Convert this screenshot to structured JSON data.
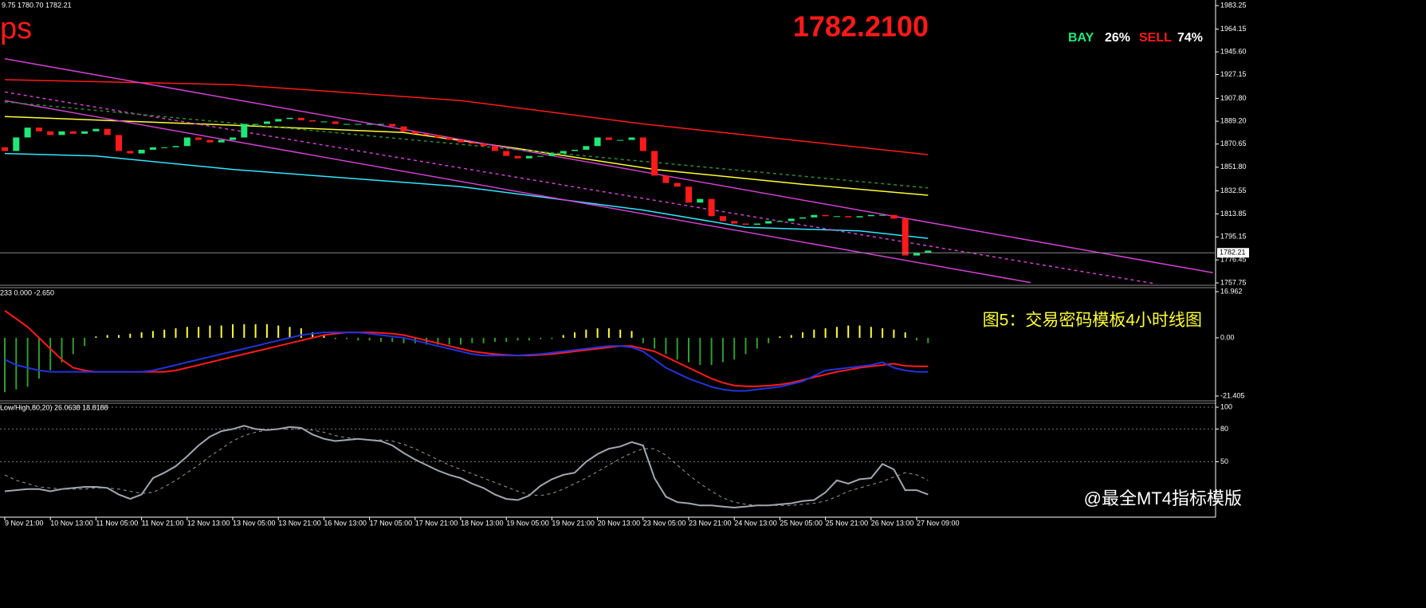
{
  "header": {
    "ohlc": "9.75 1780.70 1782.21",
    "symbol": "ps",
    "price": "1782.2100",
    "bay": "BAY",
    "bay_pct": "26%",
    "sell": "SELL",
    "sell_pct": "74%",
    "caption": "图5：交易密码模板4小时线图",
    "watermark": "@最全MT4指标模版"
  },
  "time_axis": [
    "9 Nov 21:00",
    "10 Nov 13:00",
    "11 Nov 05:00",
    "11 Nov 21:00",
    "12 Nov 13:00",
    "13 Nov 05:00",
    "13 Nov 21:00",
    "16 Nov 13:00",
    "17 Nov 05:00",
    "17 Nov 21:00",
    "18 Nov 13:00",
    "19 Nov 05:00",
    "19 Nov 21:00",
    "20 Nov 13:00",
    "23 Nov 05:00",
    "23 Nov 21:00",
    "24 Nov 13:00",
    "25 Nov 05:00",
    "25 Nov 21:00",
    "26 Nov 13:00",
    "27 Nov 09:00"
  ],
  "chart_data": [
    {
      "type": "candlestick",
      "up_color": "#1ee878",
      "down_color": "#ff1a1a",
      "open": [
        1868,
        1865,
        1876,
        1884,
        1881,
        1878,
        1881,
        1879,
        1881,
        1883,
        1878,
        1865,
        1863,
        1866,
        1868,
        1868,
        1869,
        1876,
        1874,
        1872,
        1874,
        1876,
        1887,
        1887,
        1889,
        1891,
        1892,
        1890,
        1889,
        1889,
        1887,
        1887,
        1887,
        1887,
        1887,
        1885,
        1881,
        1879,
        1878,
        1876,
        1874,
        1872,
        1871,
        1869,
        1865,
        1861,
        1859,
        1861,
        1861,
        1863,
        1865,
        1866,
        1869,
        1876,
        1874,
        1874,
        1876,
        1865,
        1845,
        1839,
        1836,
        1823,
        1826,
        1812,
        1808,
        1806,
        1805,
        1806,
        1808,
        1808,
        1810,
        1811,
        1813,
        1812,
        1812,
        1811,
        1812,
        1813,
        1813,
        1810,
        1780,
        1782
      ],
      "close": [
        1865,
        1876,
        1884,
        1881,
        1878,
        1881,
        1879,
        1881,
        1883,
        1878,
        1865,
        1863,
        1866,
        1868,
        1868,
        1869,
        1876,
        1874,
        1872,
        1874,
        1876,
        1887,
        1887,
        1889,
        1891,
        1892,
        1890,
        1889,
        1889,
        1887,
        1887,
        1887,
        1887,
        1887,
        1885,
        1881,
        1879,
        1878,
        1876,
        1874,
        1872,
        1871,
        1869,
        1865,
        1861,
        1859,
        1861,
        1861,
        1863,
        1865,
        1866,
        1869,
        1876,
        1874,
        1874,
        1876,
        1865,
        1845,
        1839,
        1836,
        1823,
        1826,
        1812,
        1808,
        1806,
        1805,
        1806,
        1808,
        1808,
        1810,
        1811,
        1813,
        1812,
        1812,
        1811,
        1812,
        1813,
        1813,
        1810,
        1780,
        1782,
        1784
      ],
      "lines": [
        {
          "color": "#ff1a1a",
          "style": "solid",
          "x": [
            0,
            20,
            40,
            56,
            70,
            81
          ],
          "values": [
            1923,
            1919,
            1906,
            1887,
            1873,
            1862
          ]
        },
        {
          "color": "#ffff33",
          "style": "solid",
          "x": [
            0,
            20,
            35,
            45,
            57,
            70,
            81
          ],
          "values": [
            1893,
            1886,
            1880,
            1867,
            1850,
            1838,
            1829
          ]
        },
        {
          "color": "#33e6ff",
          "style": "solid",
          "x": [
            0,
            8,
            20,
            40,
            56,
            65,
            75,
            81
          ],
          "values": [
            1863,
            1861,
            1850,
            1836,
            1817,
            1803,
            1800,
            1794
          ]
        },
        {
          "color": "#d040d0",
          "style": "solid",
          "x": [
            0,
            106
          ],
          "values": [
            1940,
            1766
          ]
        },
        {
          "color": "#d040d0",
          "style": "solid",
          "x": [
            0,
            90
          ],
          "values": [
            1906,
            1758
          ]
        },
        {
          "color": "#d040d0",
          "style": "dashed",
          "x": [
            0,
            101
          ],
          "values": [
            1913,
            1757
          ]
        },
        {
          "color": "#2e8b2e",
          "style": "dashed",
          "x": [
            0,
            81
          ],
          "values": [
            1905,
            1835
          ]
        }
      ],
      "last_price": 1782.21,
      "ylim": [
        1757.75,
        1983.25
      ],
      "yticks": [
        1983.25,
        1964.15,
        {
          "value": 1945.6,
          "label": "1945.60"
        },
        1927.15,
        {
          "value": 1907.8,
          "label": "1907.80"
        },
        {
          "value": 1889.2,
          "label": "1889.20"
        },
        1870.65,
        {
          "value": 1851.8,
          "label": "1851.80"
        },
        1832.55,
        1813.85,
        1795.15,
        1776.45,
        1757.75
      ]
    },
    {
      "type": "macd",
      "label": "233 0.000 -2.650",
      "pos_color": "#ffff33",
      "neg_color": "#2e9e2e",
      "histogram": [
        -20,
        -19,
        -18,
        -15,
        -12,
        -9,
        -6,
        -3,
        0.5,
        1,
        1,
        1.5,
        2,
        2.5,
        3,
        3.5,
        4,
        4,
        4.5,
        4.5,
        5,
        5,
        5,
        5,
        4.5,
        4,
        3.5,
        2,
        1,
        -0.5,
        -0.5,
        -1,
        -1,
        -1.5,
        -1.5,
        -2,
        -2,
        -2.5,
        -2.5,
        -2.5,
        -2.5,
        -2,
        -2,
        -1.5,
        -1.5,
        -1,
        -1,
        -0.5,
        -0.5,
        1,
        2,
        3,
        3.5,
        3.5,
        3,
        2.5,
        -2,
        -4,
        -6,
        -8,
        -9,
        -10,
        -10,
        -9,
        -8,
        -6,
        -4,
        -2,
        0.5,
        1,
        2,
        3,
        3.5,
        4,
        4.5,
        4.5,
        4,
        3.5,
        3,
        2,
        -1,
        -2
      ],
      "series": [
        {
          "color": "#ff1a1a",
          "values": [
            10,
            7,
            4,
            0,
            -4,
            -8,
            -11,
            -12,
            -12.5,
            -12.5,
            -12.5,
            -12.5,
            -12.5,
            -12.5,
            -12.5,
            -12,
            -11,
            -10,
            -9,
            -8,
            -7,
            -6,
            -5,
            -4,
            -3,
            -2,
            -1,
            0,
            1,
            1.5,
            2,
            2,
            2,
            1.8,
            1.5,
            1,
            0,
            -1,
            -2,
            -3,
            -4,
            -5,
            -5.5,
            -6,
            -6.3,
            -6.5,
            -6.5,
            -6.3,
            -6,
            -5.5,
            -5,
            -4.5,
            -4,
            -3.5,
            -3,
            -3,
            -4,
            -5,
            -7,
            -9,
            -11,
            -13,
            -15,
            -16.5,
            -17.5,
            -17.8,
            -17.8,
            -17.6,
            -17.2,
            -16.5,
            -15.5,
            -14.5,
            -13.5,
            -12.5,
            -11.8,
            -11,
            -10.5,
            -10,
            -9.5,
            -10.3,
            -10.5,
            -10.5
          ]
        },
        {
          "color": "#2233dd",
          "values": [
            -8,
            -10,
            -11,
            -12,
            -12.5,
            -12.5,
            -12.5,
            -12.5,
            -12.5,
            -12.5,
            -12.5,
            -12.5,
            -12.5,
            -12,
            -11,
            -10,
            -9,
            -8,
            -7,
            -6,
            -5,
            -4,
            -3,
            -2,
            -1,
            0,
            1,
            1.5,
            2,
            2,
            2,
            2,
            1.5,
            1,
            0.5,
            0,
            -1,
            -2,
            -3,
            -4,
            -5,
            -6,
            -6.5,
            -6.5,
            -6.5,
            -6.5,
            -6.2,
            -6,
            -5.5,
            -5,
            -4.5,
            -4,
            -3.5,
            -3,
            -3,
            -3.5,
            -5,
            -8,
            -11,
            -13,
            -15,
            -16.5,
            -18,
            -19,
            -19.5,
            -19.5,
            -19,
            -18.5,
            -18,
            -17,
            -16,
            -14,
            -12,
            -11.5,
            -11,
            -10.5,
            -10,
            -9,
            -11,
            -12,
            -12.5,
            -12.5
          ]
        }
      ],
      "ylim": [
        -21.405,
        16.962
      ],
      "yticks": [
        16.962,
        {
          "value": 0,
          "label": "0.00"
        },
        -21.405
      ]
    },
    {
      "type": "stochastic",
      "label": "Low/High,80,20) 26.0638 18.8188",
      "series": [
        {
          "color": "#a0a8b0",
          "style": "solid",
          "values": [
            23,
            24,
            25,
            25,
            23,
            25,
            26,
            27,
            27,
            26,
            20,
            16,
            20,
            35,
            40,
            46,
            55,
            65,
            73,
            78,
            80,
            83,
            80,
            79,
            80,
            82,
            81,
            75,
            71,
            69,
            70,
            71,
            70,
            69,
            65,
            58,
            52,
            47,
            42,
            38,
            35,
            30,
            26,
            20,
            16,
            15,
            19,
            28,
            34,
            38,
            40,
            50,
            57,
            62,
            64,
            68,
            65,
            35,
            18,
            13,
            12,
            10,
            10,
            9,
            8,
            9,
            10,
            10,
            11,
            12,
            14,
            15,
            22,
            33,
            30,
            34,
            35,
            48,
            43,
            24,
            24,
            20
          ]
        },
        {
          "color": "#9a9a9a",
          "style": "dashed",
          "values": [
            38,
            33,
            30,
            27,
            26,
            25,
            25,
            25,
            26,
            26,
            25,
            23,
            21,
            22,
            27,
            33,
            40,
            47,
            55,
            62,
            69,
            74,
            77,
            79,
            80,
            80,
            80,
            79,
            77,
            74,
            72,
            71,
            70,
            70,
            69,
            66,
            62,
            57,
            52,
            47,
            43,
            39,
            35,
            31,
            27,
            23,
            20,
            19,
            21,
            25,
            30,
            35,
            41,
            47,
            53,
            58,
            62,
            62,
            56,
            47,
            38,
            30,
            23,
            17,
            13,
            11,
            10,
            10,
            10,
            10,
            11,
            12,
            14,
            18,
            23,
            26,
            29,
            32,
            36,
            40,
            38,
            33
          ]
        }
      ],
      "ylim": [
        0,
        100
      ],
      "yticks": [
        100,
        80,
        50
      ]
    }
  ]
}
